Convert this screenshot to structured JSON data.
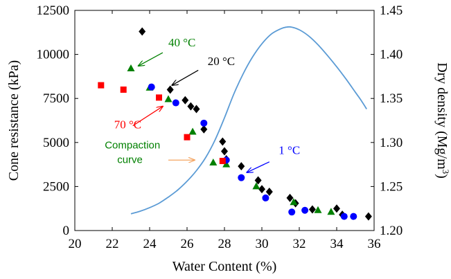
{
  "chart_data": {
    "type": "scatter",
    "xlabel": "Water Content (%)",
    "ylabel": "Cone resistance (kPa)",
    "y2label_main": "Dry density (Mg/m",
    "y2label_sup": "3",
    "y2label_tail": ")",
    "xlim": [
      20,
      36
    ],
    "ylim": [
      0,
      12500
    ],
    "y2lim": [
      1.2,
      1.45
    ],
    "xticks": [
      "20",
      "22",
      "24",
      "26",
      "28",
      "30",
      "32",
      "34",
      "36"
    ],
    "yticks": [
      "0",
      "2500",
      "5000",
      "7500",
      "10000",
      "12500"
    ],
    "y2ticks": [
      "1.20",
      "1.25",
      "1.30",
      "1.35",
      "1.40",
      "1.45"
    ],
    "series": [
      {
        "name": "20 °C",
        "marker": "diamond",
        "color": "#000000",
        "points": [
          [
            23.6,
            11300
          ],
          [
            25.1,
            8000
          ],
          [
            25.9,
            7400
          ],
          [
            26.2,
            7050
          ],
          [
            26.5,
            6900
          ],
          [
            26.9,
            5750
          ],
          [
            27.9,
            5050
          ],
          [
            28.0,
            4500
          ],
          [
            28.1,
            4050
          ],
          [
            28.9,
            3650
          ],
          [
            29.8,
            2850
          ],
          [
            30.0,
            2350
          ],
          [
            30.4,
            2200
          ],
          [
            31.5,
            1850
          ],
          [
            31.8,
            1550
          ],
          [
            32.7,
            1200
          ],
          [
            34.0,
            1250
          ],
          [
            34.3,
            900
          ],
          [
            35.7,
            800
          ]
        ]
      },
      {
        "name": "40 °C",
        "marker": "triangle",
        "color": "#008000",
        "points": [
          [
            23.0,
            9200
          ],
          [
            24.0,
            8100
          ],
          [
            25.0,
            7450
          ],
          [
            26.3,
            5600
          ],
          [
            27.4,
            3850
          ],
          [
            28.1,
            3750
          ],
          [
            29.7,
            2500
          ],
          [
            31.7,
            1600
          ],
          [
            33.0,
            1150
          ],
          [
            33.7,
            1050
          ]
        ]
      },
      {
        "name": "1 °C",
        "marker": "circle",
        "color": "#0000ff",
        "points": [
          [
            24.1,
            8150
          ],
          [
            25.4,
            7250
          ],
          [
            26.9,
            6100
          ],
          [
            28.1,
            4000
          ],
          [
            28.9,
            3000
          ],
          [
            30.2,
            1850
          ],
          [
            31.6,
            1050
          ],
          [
            32.3,
            1150
          ],
          [
            34.4,
            800
          ],
          [
            34.9,
            800
          ]
        ]
      },
      {
        "name": "70 °C",
        "marker": "square",
        "color": "#ff0000",
        "points": [
          [
            21.4,
            8250
          ],
          [
            22.6,
            8000
          ],
          [
            24.5,
            7550
          ],
          [
            26.0,
            5300
          ],
          [
            27.9,
            3950
          ]
        ]
      }
    ],
    "compaction_curve": {
      "name": "Compaction curve",
      "color": "#5b9bd5",
      "axis": "right",
      "points": [
        [
          23.0,
          1.219
        ],
        [
          23.5,
          1.222
        ],
        [
          24.0,
          1.226
        ],
        [
          24.5,
          1.231
        ],
        [
          25.0,
          1.238
        ],
        [
          25.5,
          1.246
        ],
        [
          26.0,
          1.256
        ],
        [
          26.5,
          1.268
        ],
        [
          27.0,
          1.283
        ],
        [
          27.5,
          1.303
        ],
        [
          28.0,
          1.328
        ],
        [
          28.5,
          1.355
        ],
        [
          29.0,
          1.378
        ],
        [
          29.5,
          1.397
        ],
        [
          30.0,
          1.412
        ],
        [
          30.5,
          1.423
        ],
        [
          31.0,
          1.429
        ],
        [
          31.3,
          1.431
        ],
        [
          31.6,
          1.431
        ],
        [
          32.0,
          1.428
        ],
        [
          32.5,
          1.421
        ],
        [
          33.0,
          1.411
        ],
        [
          33.5,
          1.399
        ],
        [
          34.0,
          1.386
        ],
        [
          34.5,
          1.372
        ],
        [
          35.0,
          1.357
        ],
        [
          35.3,
          1.348
        ],
        [
          35.6,
          1.338
        ]
      ]
    },
    "annotations": [
      {
        "label": "40 °C",
        "color": "#008000",
        "text_x": 25.0,
        "text_y": 10450,
        "from": [
          24.7,
          10100
        ],
        "to": [
          23.4,
          9350
        ]
      },
      {
        "label": "20 °C",
        "color": "#000000",
        "text_x": 27.1,
        "text_y": 9400,
        "from": [
          26.6,
          9100
        ],
        "to": [
          25.2,
          8250
        ]
      },
      {
        "label": "70 °C",
        "color": "#ff0000",
        "text_x": 22.1,
        "text_y": 5800,
        "from": [
          23.1,
          5950
        ],
        "to": [
          24.7,
          7050
        ]
      },
      {
        "label": "1 °C",
        "color": "#0000ff",
        "text_x": 30.9,
        "text_y": 4350,
        "from": [
          30.4,
          3900
        ],
        "to": [
          29.2,
          3300
        ]
      },
      {
        "label": "Compaction",
        "label2": "curve",
        "color": "#008000",
        "arrow_color": "#f4a460",
        "text_x": 21.6,
        "text_y": 4650,
        "from": [
          25.0,
          4000
        ],
        "to": [
          26.4,
          4000
        ]
      }
    ]
  }
}
